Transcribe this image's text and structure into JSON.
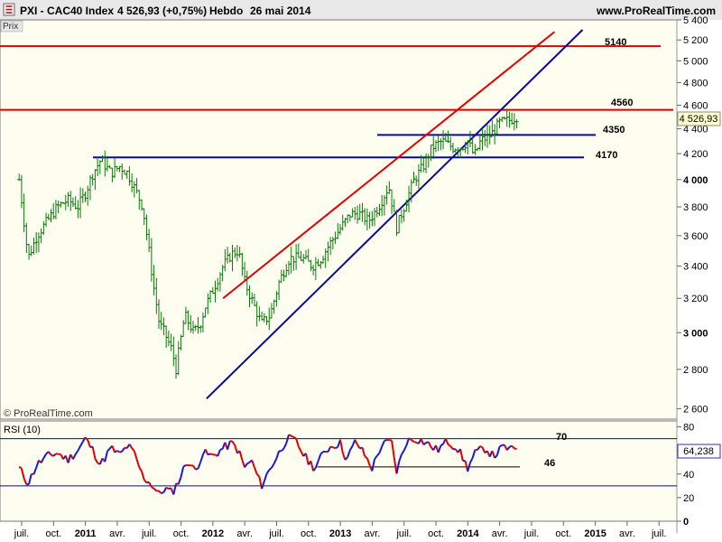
{
  "header": {
    "instrument": "PXI - CAC40 Index",
    "price_change": "4 526,93 (+0,75%)",
    "period": "Hebdo",
    "date": "26 mai 2014",
    "site": "www.ProRealTime.com"
  },
  "price_panel": {
    "label": "Prix",
    "watermark": "© ProRealTime.com",
    "current_price_label": "4 526,93",
    "colors": {
      "background": "#fdfdf0",
      "candle": "#0b7a0b",
      "red_line": "#e00000",
      "blue_line": "#0a0a99",
      "price_box": "#ffffcc"
    }
  },
  "rsi_panel": {
    "label": "RSI (10)",
    "current_value_label": "64,238",
    "level_upper_label": "70",
    "level_lower_label": "46"
  },
  "chart_data": [
    {
      "type": "line",
      "name": "price",
      "ylim": [
        2550,
        5400
      ],
      "y_ticks": [
        2600,
        2800,
        3000,
        3200,
        3400,
        3600,
        3800,
        4000,
        4200,
        4400,
        4600,
        4800,
        5000,
        5200,
        5400
      ],
      "y_tick_labels": [
        "2 600",
        "2 800",
        "3 000",
        "3 200",
        "3 400",
        "3 600",
        "3 800",
        "4 000",
        "4 200",
        "4 400",
        "4 600",
        "4 800",
        "5 000",
        "5 200",
        "5 400"
      ],
      "y_tick_bold": [
        3000,
        4000
      ],
      "x_tick_labels": [
        "juil.",
        "oct.",
        "2011",
        "avr.",
        "juil.",
        "oct.",
        "2012",
        "avr.",
        "juil.",
        "oct.",
        "2013",
        "avr.",
        "juil.",
        "oct.",
        "2014",
        "avr.",
        "juil.",
        "oct.",
        "2015",
        "avr.",
        "juil."
      ],
      "x_tick_bold": [
        "2011",
        "2012",
        "2013",
        "2014",
        "2015"
      ],
      "series": [
        {
          "values": [
            [
              2010.48,
              4000
            ],
            [
              2010.55,
              3450
            ],
            [
              2010.62,
              3600
            ],
            [
              2010.7,
              3700
            ],
            [
              2010.78,
              3800
            ],
            [
              2010.86,
              3850
            ],
            [
              2010.94,
              3800
            ],
            [
              2011.0,
              3900
            ],
            [
              2011.06,
              4050
            ],
            [
              2011.12,
              4150
            ],
            [
              2011.2,
              4050
            ],
            [
              2011.27,
              4100
            ],
            [
              2011.33,
              4050
            ],
            [
              2011.38,
              3950
            ],
            [
              2011.45,
              3800
            ],
            [
              2011.53,
              3300
            ],
            [
              2011.58,
              3050
            ],
            [
              2011.62,
              3000
            ],
            [
              2011.68,
              2900
            ],
            [
              2011.71,
              2800
            ],
            [
              2011.78,
              3100
            ],
            [
              2011.85,
              3000
            ],
            [
              2011.9,
              3050
            ],
            [
              2011.94,
              3150
            ],
            [
              2012.0,
              3250
            ],
            [
              2012.08,
              3400
            ],
            [
              2012.15,
              3480
            ],
            [
              2012.2,
              3500
            ],
            [
              2012.25,
              3300
            ],
            [
              2012.3,
              3200
            ],
            [
              2012.38,
              3050
            ],
            [
              2012.45,
              3100
            ],
            [
              2012.52,
              3300
            ],
            [
              2012.6,
              3450
            ],
            [
              2012.7,
              3450
            ],
            [
              2012.78,
              3400
            ],
            [
              2012.85,
              3450
            ],
            [
              2012.92,
              3550
            ],
            [
              2013.0,
              3650
            ],
            [
              2013.08,
              3750
            ],
            [
              2013.15,
              3750
            ],
            [
              2013.22,
              3700
            ],
            [
              2013.3,
              3800
            ],
            [
              2013.38,
              3950
            ],
            [
              2013.44,
              3650
            ],
            [
              2013.5,
              3800
            ],
            [
              2013.58,
              4000
            ],
            [
              2013.65,
              4100
            ],
            [
              2013.72,
              4250
            ],
            [
              2013.8,
              4300
            ],
            [
              2013.88,
              4250
            ],
            [
              2013.95,
              4250
            ],
            [
              2014.0,
              4300
            ],
            [
              2014.05,
              4180
            ],
            [
              2014.1,
              4300
            ],
            [
              2014.18,
              4350
            ],
            [
              2014.25,
              4450
            ],
            [
              2014.32,
              4470
            ],
            [
              2014.38,
              4500
            ],
            [
              2014.4,
              4527
            ]
          ]
        }
      ],
      "levels": [
        {
          "value": 5140,
          "label": "5140"
        },
        {
          "value": 4560,
          "label": "4560"
        },
        {
          "value": 4350,
          "label": "4350"
        },
        {
          "value": 4170,
          "label": "4170"
        }
      ],
      "trendlines": [
        {
          "name": "upper-channel",
          "from": [
            2012.08,
            3200
          ],
          "to": [
            2014.68,
            5280
          ]
        },
        {
          "name": "lower-channel",
          "from": [
            2011.95,
            2650
          ],
          "to": [
            2014.9,
            5300
          ]
        }
      ],
      "last_value": 4526.93
    },
    {
      "type": "line",
      "name": "RSI (10)",
      "ylim": [
        0,
        85
      ],
      "y_ticks": [
        0,
        20,
        40,
        60,
        80
      ],
      "y_tick_labels": [
        "0",
        "20",
        "40",
        "60",
        "80"
      ],
      "y_tick_bold": [
        0
      ],
      "levels": [
        70,
        30
      ],
      "support": {
        "value": 46,
        "from_x": 2012.82,
        "to_x": 2014.4
      },
      "series": [
        {
          "values": [
            [
              2010.48,
              45
            ],
            [
              2010.55,
              32
            ],
            [
              2010.62,
              48
            ],
            [
              2010.7,
              55
            ],
            [
              2010.78,
              58
            ],
            [
              2010.86,
              52
            ],
            [
              2010.94,
              60
            ],
            [
              2011.0,
              70
            ],
            [
              2011.06,
              60
            ],
            [
              2011.12,
              48
            ],
            [
              2011.2,
              62
            ],
            [
              2011.27,
              56
            ],
            [
              2011.33,
              64
            ],
            [
              2011.38,
              58
            ],
            [
              2011.45,
              38
            ],
            [
              2011.53,
              30
            ],
            [
              2011.58,
              22
            ],
            [
              2011.62,
              28
            ],
            [
              2011.68,
              24
            ],
            [
              2011.74,
              36
            ],
            [
              2011.8,
              52
            ],
            [
              2011.86,
              42
            ],
            [
              2011.92,
              58
            ],
            [
              2012.0,
              55
            ],
            [
              2012.08,
              62
            ],
            [
              2012.15,
              66
            ],
            [
              2012.2,
              60
            ],
            [
              2012.25,
              45
            ],
            [
              2012.3,
              52
            ],
            [
              2012.38,
              30
            ],
            [
              2012.45,
              45
            ],
            [
              2012.52,
              58
            ],
            [
              2012.58,
              70
            ],
            [
              2012.65,
              68
            ],
            [
              2012.72,
              55
            ],
            [
              2012.8,
              45
            ],
            [
              2012.88,
              60
            ],
            [
              2012.95,
              65
            ],
            [
              2013.0,
              66
            ],
            [
              2013.05,
              52
            ],
            [
              2013.12,
              68
            ],
            [
              2013.18,
              58
            ],
            [
              2013.25,
              45
            ],
            [
              2013.32,
              64
            ],
            [
              2013.4,
              68
            ],
            [
              2013.44,
              42
            ],
            [
              2013.52,
              68
            ],
            [
              2013.6,
              70
            ],
            [
              2013.68,
              66
            ],
            [
              2013.76,
              60
            ],
            [
              2013.84,
              68
            ],
            [
              2013.92,
              62
            ],
            [
              2014.0,
              45
            ],
            [
              2014.06,
              58
            ],
            [
              2014.14,
              62
            ],
            [
              2014.2,
              55
            ],
            [
              2014.28,
              63
            ],
            [
              2014.35,
              60
            ],
            [
              2014.4,
              64.24
            ]
          ]
        }
      ],
      "last_value": 64.238
    }
  ]
}
